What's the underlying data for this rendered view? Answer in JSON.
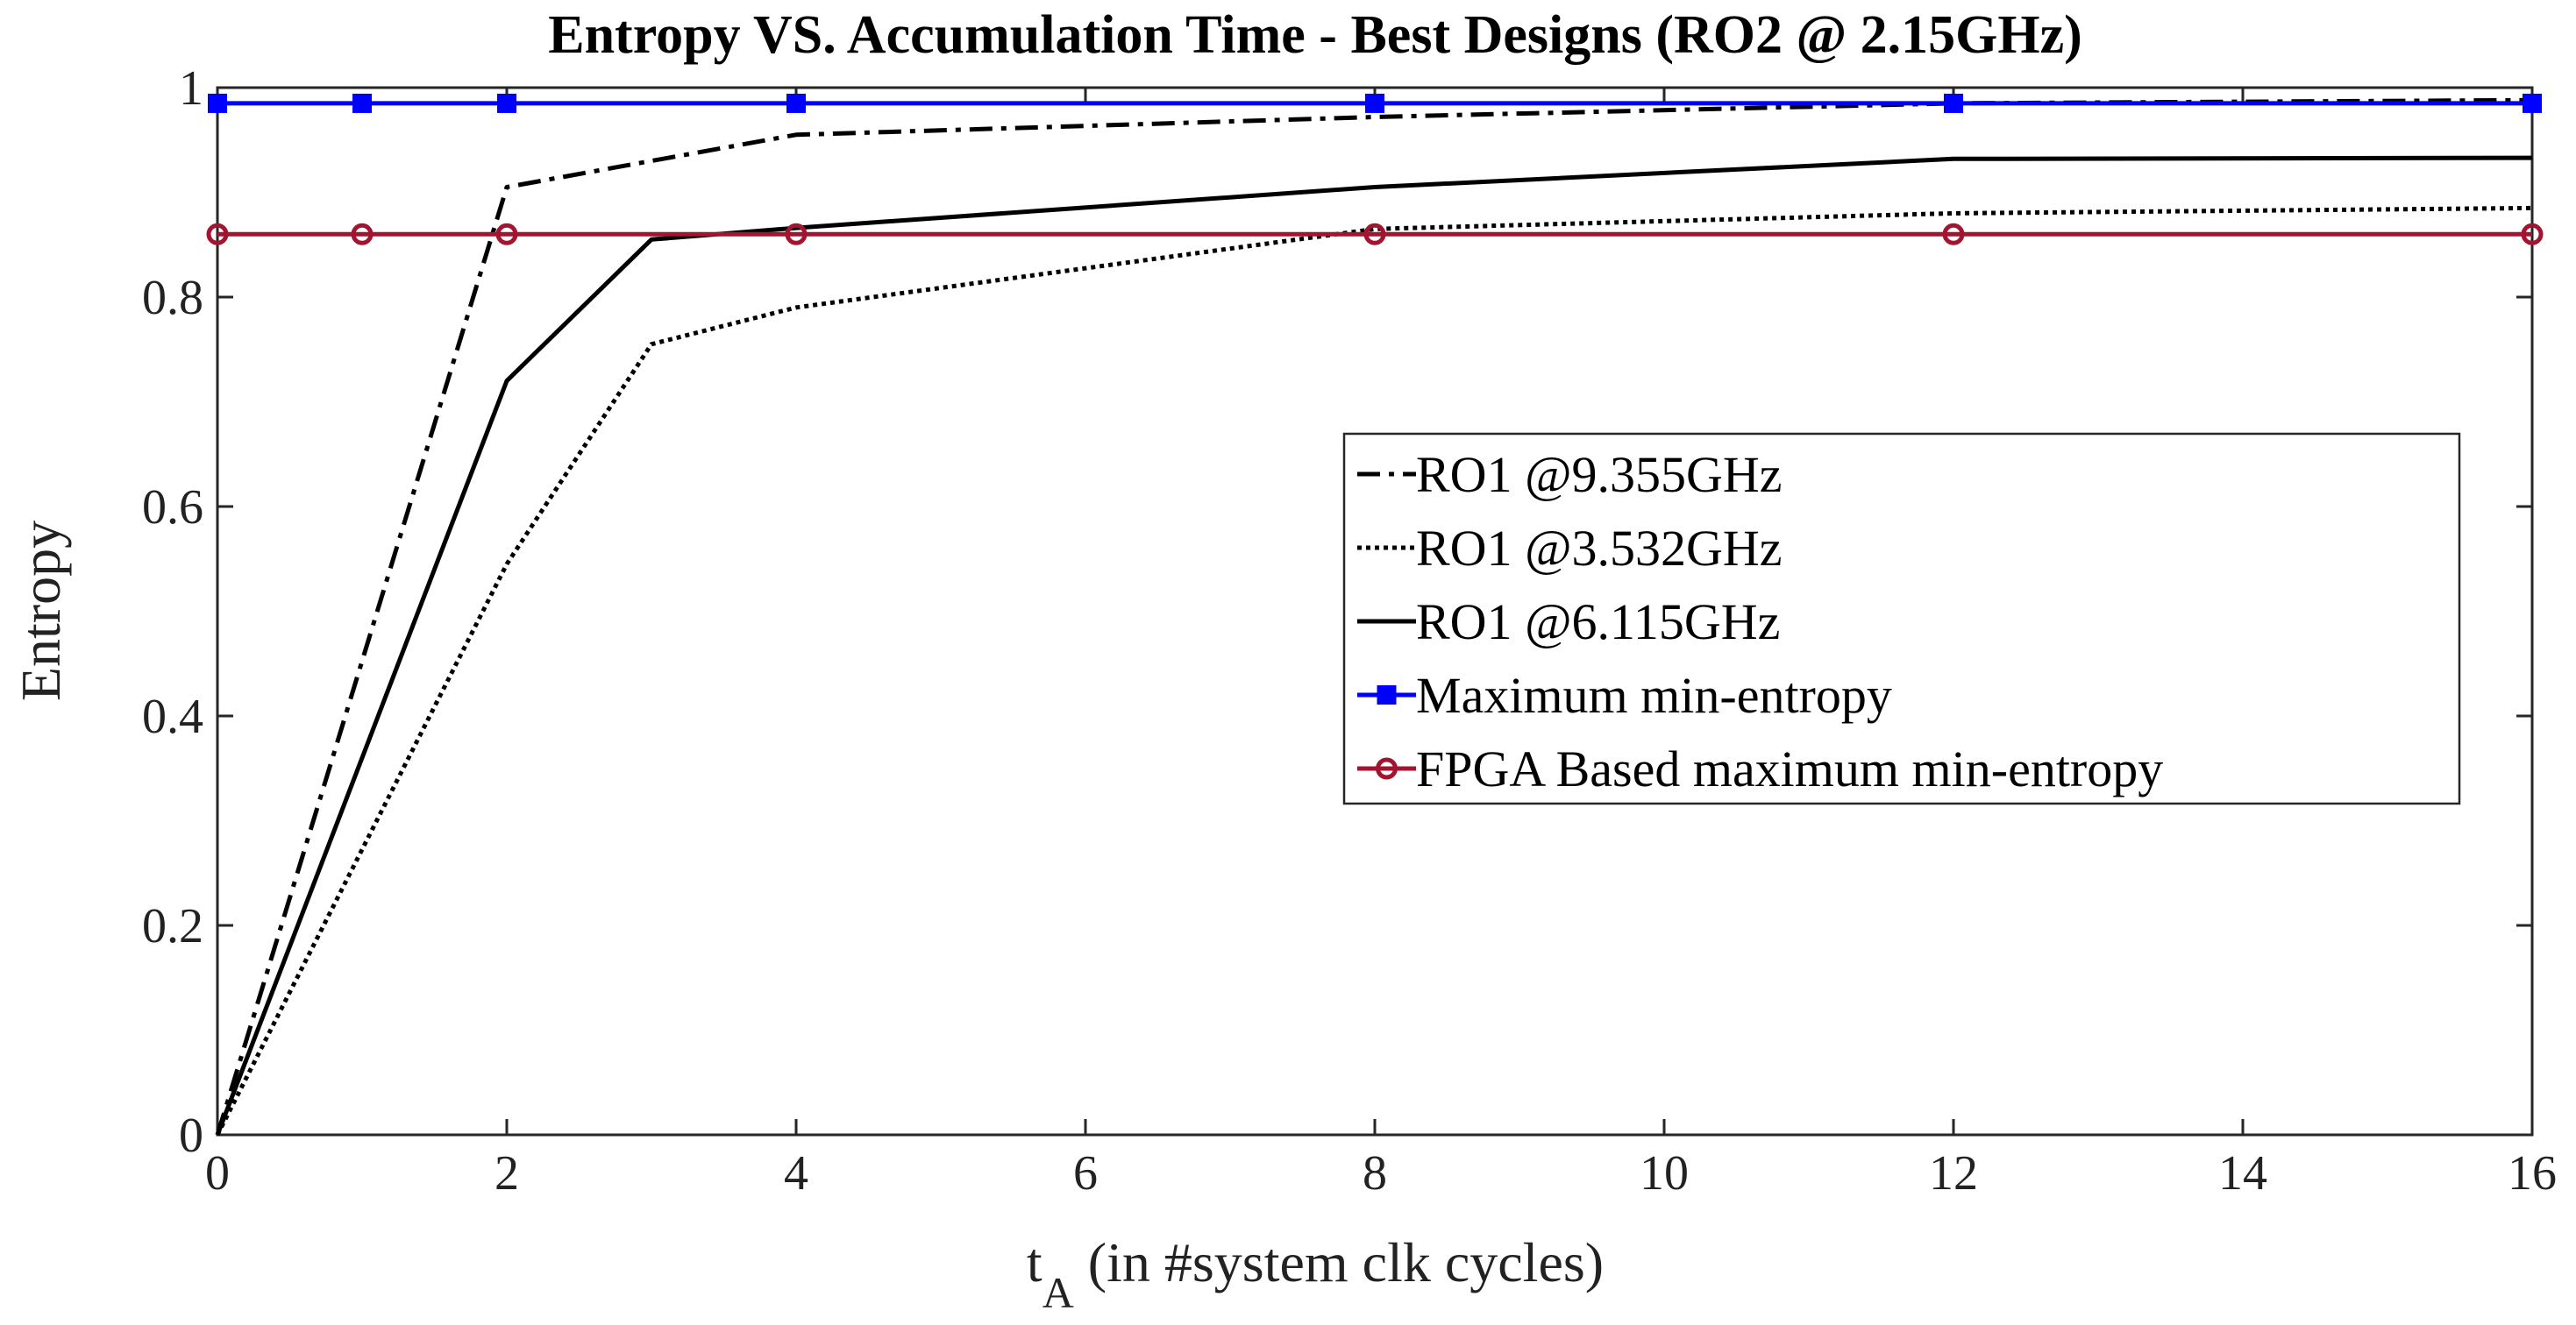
{
  "chart_data": {
    "type": "line",
    "title": "Entropy VS. Accumulation Time - Best Designs (RO2 @ 2.15GHz)",
    "xlabel": "t",
    "xlabel_subscript": "A",
    "xlabel_rest": " (in #system clk cycles)",
    "ylabel": "Entropy",
    "xlim": [
      0,
      16
    ],
    "ylim": [
      0,
      1
    ],
    "xticks": [
      0,
      2,
      4,
      6,
      8,
      10,
      12,
      14,
      16
    ],
    "yticks": [
      0,
      0.2,
      0.4,
      0.6,
      0.8,
      1
    ],
    "xtick_labels": [
      "0",
      "2",
      "4",
      "6",
      "8",
      "10",
      "12",
      "14",
      "16"
    ],
    "ytick_labels": [
      "0",
      "0.2",
      "0.4",
      "0.6",
      "0.8",
      "1"
    ],
    "grid": false,
    "legend_position": "center-right",
    "series": [
      {
        "name": "RO1 @9.355GHz",
        "style": "dashdot",
        "color": "#000000",
        "marker": "none",
        "x": [
          0,
          2,
          3,
          4,
          8,
          12,
          16
        ],
        "y": [
          0,
          0.905,
          0.93,
          0.955,
          0.972,
          0.985,
          0.988
        ]
      },
      {
        "name": "RO1 @3.532GHz",
        "style": "dotted",
        "color": "#000000",
        "marker": "none",
        "x": [
          0,
          2,
          3,
          4,
          8,
          12,
          16
        ],
        "y": [
          0,
          0.545,
          0.755,
          0.79,
          0.865,
          0.88,
          0.885
        ]
      },
      {
        "name": "RO1 @6.115GHz",
        "style": "solid",
        "color": "#000000",
        "marker": "none",
        "x": [
          0,
          2,
          3,
          4,
          8,
          12,
          16
        ],
        "y": [
          0,
          0.72,
          0.855,
          0.866,
          0.905,
          0.932,
          0.933
        ]
      },
      {
        "name": "Maximum min-entropy",
        "style": "solid",
        "color": "#0000ff",
        "marker": "square",
        "x": [
          0,
          1,
          2,
          4,
          8,
          12,
          16
        ],
        "y": [
          0.985,
          0.985,
          0.985,
          0.985,
          0.985,
          0.985,
          0.985
        ]
      },
      {
        "name": "FPGA Based maximum min-entropy",
        "style": "solid",
        "color": "#a2142f",
        "marker": "circle",
        "x": [
          0,
          1,
          2,
          4,
          8,
          12,
          16
        ],
        "y": [
          0.86,
          0.86,
          0.86,
          0.86,
          0.86,
          0.86,
          0.86
        ]
      }
    ]
  }
}
